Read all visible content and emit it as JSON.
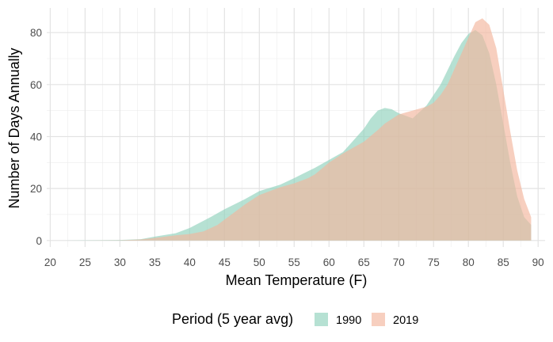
{
  "chart_data": {
    "type": "area",
    "xlabel": "Mean Temperature (F)",
    "ylabel": "Number of Days Annually",
    "xlim": [
      19.5,
      91
    ],
    "ylim": [
      -2.5,
      89.5
    ],
    "x_ticks": [
      20,
      25,
      30,
      35,
      40,
      45,
      50,
      55,
      60,
      65,
      70,
      75,
      80,
      85,
      90
    ],
    "y_ticks": [
      0,
      20,
      40,
      60,
      80
    ],
    "grid": true,
    "legend": {
      "title": "Period (5 year avg)",
      "position": "bottom"
    },
    "series": [
      {
        "name": "1990",
        "color": "#8fd1bb",
        "points": [
          [
            22,
            0.0
          ],
          [
            25,
            0.1
          ],
          [
            30,
            0.2
          ],
          [
            33,
            0.5
          ],
          [
            35,
            1.5
          ],
          [
            38,
            2.8
          ],
          [
            40,
            4.8
          ],
          [
            43,
            9.0
          ],
          [
            45,
            12.0
          ],
          [
            48,
            16.0
          ],
          [
            50,
            19.0
          ],
          [
            53,
            21.5
          ],
          [
            55,
            24.0
          ],
          [
            58,
            28.0
          ],
          [
            60,
            31.0
          ],
          [
            62,
            34.0
          ],
          [
            63,
            37.0
          ],
          [
            65,
            43.0
          ],
          [
            66,
            47.0
          ],
          [
            67,
            50.0
          ],
          [
            68,
            51.0
          ],
          [
            69,
            50.5
          ],
          [
            70,
            49.0
          ],
          [
            72,
            47.0
          ],
          [
            74,
            52.0
          ],
          [
            76,
            60.0
          ],
          [
            78,
            71.0
          ],
          [
            79,
            76.0
          ],
          [
            80,
            79.5
          ],
          [
            81,
            81.0
          ],
          [
            82,
            79.0
          ],
          [
            83,
            72.0
          ],
          [
            84,
            60.0
          ],
          [
            85,
            45.0
          ],
          [
            86,
            30.0
          ],
          [
            87,
            17.0
          ],
          [
            88,
            9.0
          ],
          [
            89,
            6.0
          ]
        ]
      },
      {
        "name": "2019",
        "color": "#f3b59d",
        "points": [
          [
            22,
            0.0
          ],
          [
            25,
            0.0
          ],
          [
            30,
            0.1
          ],
          [
            33,
            0.4
          ],
          [
            35,
            1.0
          ],
          [
            38,
            2.0
          ],
          [
            40,
            2.5
          ],
          [
            42,
            3.5
          ],
          [
            44,
            6.0
          ],
          [
            45,
            8.0
          ],
          [
            48,
            14.0
          ],
          [
            50,
            17.5
          ],
          [
            53,
            20.5
          ],
          [
            55,
            22.0
          ],
          [
            57,
            24.0
          ],
          [
            58,
            25.5
          ],
          [
            60,
            30.0
          ],
          [
            62,
            33.5
          ],
          [
            63,
            35.0
          ],
          [
            65,
            38.0
          ],
          [
            67,
            42.5
          ],
          [
            68,
            45.0
          ],
          [
            70,
            48.5
          ],
          [
            72,
            50.0
          ],
          [
            74,
            51.5
          ],
          [
            75,
            53.0
          ],
          [
            76,
            56.0
          ],
          [
            77,
            60.0
          ],
          [
            78,
            66.0
          ],
          [
            79,
            72.0
          ],
          [
            80,
            78.0
          ],
          [
            81,
            84.0
          ],
          [
            82,
            85.5
          ],
          [
            83,
            83.0
          ],
          [
            84,
            74.0
          ],
          [
            85,
            58.0
          ],
          [
            86,
            42.0
          ],
          [
            87,
            27.0
          ],
          [
            88,
            16.0
          ],
          [
            89,
            9.0
          ]
        ]
      }
    ]
  }
}
